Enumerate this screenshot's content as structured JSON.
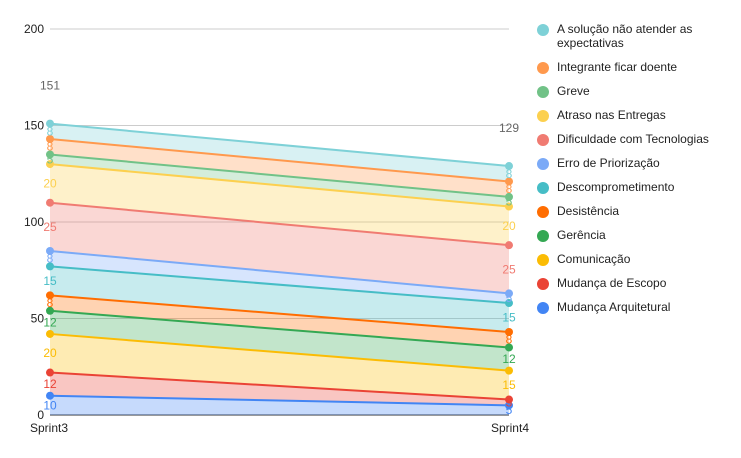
{
  "chart_data": {
    "type": "area",
    "stacked": true,
    "categories": [
      "Sprint3",
      "Sprint4"
    ],
    "ylim": [
      0,
      200
    ],
    "yticks": [
      0,
      50,
      100,
      150,
      200
    ],
    "totals": [
      "151",
      "129"
    ],
    "legend_position": "right",
    "grid": true,
    "series": [
      {
        "name": "Mudança Arquitetural",
        "color": "#4285f4",
        "values": [
          10,
          5
        ]
      },
      {
        "name": "Mudança de Escopo",
        "color": "#ea4335",
        "values": [
          12,
          3
        ]
      },
      {
        "name": "Comunicação",
        "color": "#fbbc04",
        "values": [
          20,
          15
        ]
      },
      {
        "name": "Gerência",
        "color": "#34a853",
        "values": [
          12,
          12
        ]
      },
      {
        "name": "Desistência",
        "color": "#ff6d01",
        "values": [
          8,
          8
        ]
      },
      {
        "name": "Descomprometimento",
        "color": "#46bdc6",
        "values": [
          15,
          15
        ]
      },
      {
        "name": "Erro de Priorização",
        "color": "#7baaf7",
        "values": [
          8,
          5
        ]
      },
      {
        "name": "Dificuldade com Tecnologias",
        "color": "#f07b72",
        "values": [
          25,
          25
        ]
      },
      {
        "name": "Atraso nas Entregas",
        "color": "#fcd04f",
        "values": [
          20,
          20
        ]
      },
      {
        "name": "Greve",
        "color": "#71c287",
        "values": [
          5,
          5
        ]
      },
      {
        "name": "Integrante ficar doente",
        "color": "#ff994d",
        "values": [
          8,
          8
        ]
      },
      {
        "name": "A solução não atender as expectativas",
        "color": "#7ed1d7",
        "values": [
          8,
          8
        ]
      }
    ]
  },
  "legend": {
    "items": [
      {
        "label": "A solução não atender as expectativas",
        "color": "#7ed1d7"
      },
      {
        "label": "Integrante ficar doente",
        "color": "#ff994d"
      },
      {
        "label": "Greve",
        "color": "#71c287"
      },
      {
        "label": "Atraso nas Entregas",
        "color": "#fcd04f"
      },
      {
        "label": "Dificuldade com Tecnologias",
        "color": "#f07b72"
      },
      {
        "label": "Erro de Priorização",
        "color": "#7baaf7"
      },
      {
        "label": "Descomprometimento",
        "color": "#46bdc6"
      },
      {
        "label": "Desistência",
        "color": "#ff6d01"
      },
      {
        "label": "Gerência",
        "color": "#34a853"
      },
      {
        "label": "Comunicação",
        "color": "#fbbc04"
      },
      {
        "label": "Mudança de Escopo",
        "color": "#ea4335"
      },
      {
        "label": "Mudança Arquitetural",
        "color": "#4285f4"
      }
    ]
  }
}
